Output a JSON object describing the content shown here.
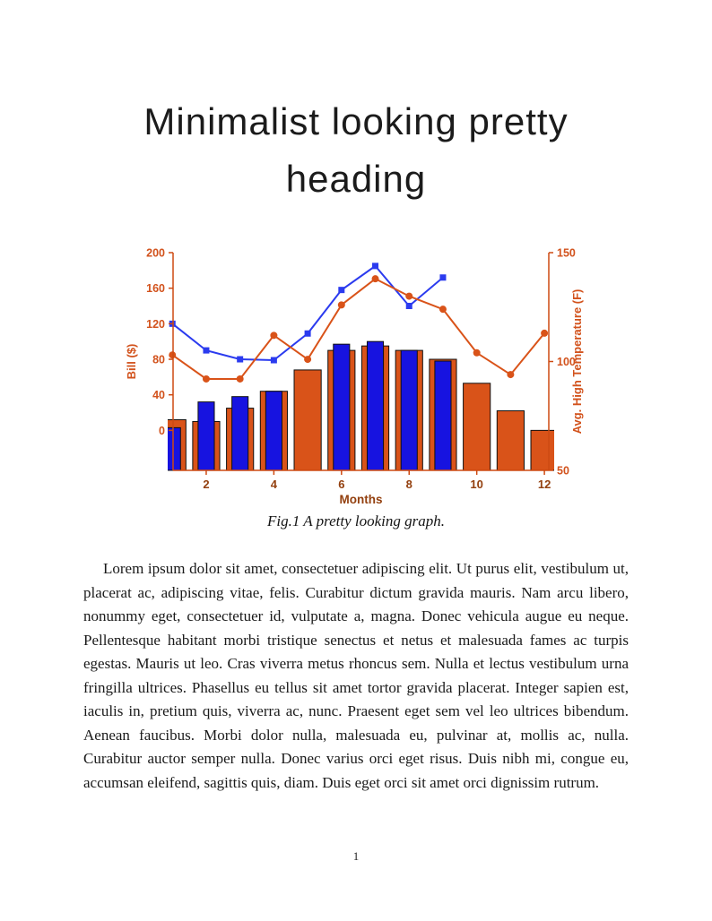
{
  "page": {
    "title_lines": [
      "Minimalist looking pretty",
      "heading"
    ],
    "figure_caption": "Fig.1 A pretty looking graph.",
    "body_paragraph": "Lorem ipsum dolor sit amet, consectetuer adipiscing elit. Ut purus elit, vestibulum ut, placerat ac, adipiscing vitae, felis. Curabitur dictum gravida mauris. Nam arcu libero, nonummy eget, consectetuer id, vulputate a, magna. Donec vehicula augue eu neque. Pellentesque habitant morbi tristique senectus et netus et malesuada fames ac turpis egestas. Mauris ut leo. Cras viverra metus rhoncus sem. Nulla et lectus vestibulum urna fringilla ultrices. Phasellus eu tellus sit amet tortor gravida placerat. Integer sapien est, iaculis in, pretium quis, viverra ac, nunc. Praesent eget sem vel leo ultrices bibendum. Aenean faucibus. Morbi dolor nulla, malesuada eu, pulvinar at, mollis ac, nulla. Curabitur auctor semper nulla. Donec varius orci eget risus. Duis nibh mi, congue eu, accumsan eleifend, sagittis quis, diam. Duis eget orci sit amet orci dignissim rutrum.",
    "page_number": "1"
  },
  "chart_data": {
    "type": "combo-bar-line",
    "title": "",
    "xlabel": "Months",
    "ylabel_left": "Bill ($)",
    "ylabel_right": "Avg. High Temperature (F)",
    "x": [
      1,
      2,
      3,
      4,
      5,
      6,
      7,
      8,
      9,
      10,
      11,
      12
    ],
    "x_ticks": [
      2,
      4,
      6,
      8,
      10,
      12
    ],
    "left_ticks": [
      0,
      40,
      80,
      120,
      160,
      200
    ],
    "right_ticks": [
      50,
      100,
      150
    ],
    "left_ylim": [
      -45,
      200
    ],
    "right_ylim": [
      50,
      150
    ],
    "xlim": [
      1.02,
      12.13
    ],
    "bar_baseline": "axis-bottom",
    "grid": false,
    "legend": "none",
    "series": [
      {
        "name": "temperature-bars",
        "type": "bar",
        "axis": "left",
        "color": "#D95319",
        "bar_width": 0.8,
        "values": [
          12,
          10,
          25,
          44,
          68,
          90,
          95,
          90,
          80,
          53,
          22,
          0
        ]
      },
      {
        "name": "bill-bars",
        "type": "bar",
        "axis": "left",
        "color": "#1713E0",
        "bar_width": 0.48,
        "values": [
          3,
          32,
          38,
          44,
          null,
          97,
          100,
          90,
          78,
          null,
          null,
          null
        ]
      },
      {
        "name": "bill-line",
        "type": "line",
        "axis": "left",
        "color": "#2B3BEF",
        "marker": "square",
        "values": [
          120,
          90,
          80,
          79,
          109,
          158,
          185,
          140,
          172,
          null,
          null,
          null
        ]
      },
      {
        "name": "temperature-line",
        "type": "line",
        "axis": "right",
        "color": "#D95319",
        "marker": "circle",
        "values": [
          103,
          92,
          92,
          112,
          101,
          126,
          138,
          130,
          124,
          104,
          94,
          113
        ]
      }
    ],
    "colors": {
      "axis": "#CE4A12",
      "left_labels": "#D2521C",
      "right_labels": "#D2521C",
      "x_labels": "#93400F",
      "bar_edge": "#101010"
    }
  }
}
